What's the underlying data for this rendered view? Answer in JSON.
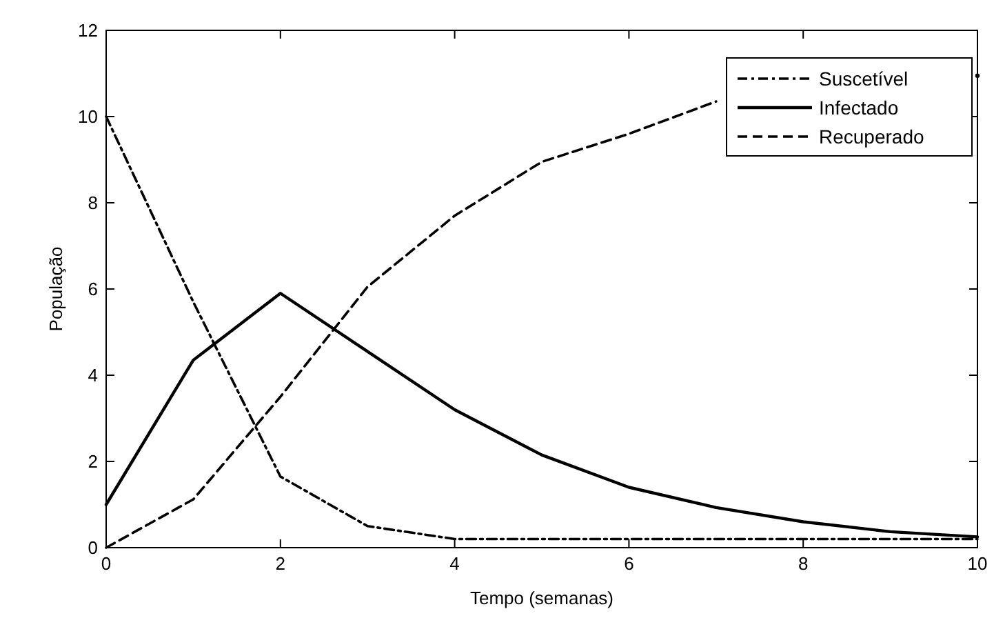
{
  "chart_data": {
    "type": "line",
    "xlabel": "Tempo (semanas)",
    "ylabel": "População",
    "x": [
      0,
      1,
      2,
      3,
      4,
      5,
      6,
      7,
      8,
      9,
      10
    ],
    "series": [
      {
        "name": "Suscetível",
        "color": "#000000",
        "line_style": "dashdot",
        "values": [
          10,
          5.7,
          1.65,
          0.5,
          0.2,
          0.2,
          0.2,
          0.2,
          0.2,
          0.2,
          0.2
        ]
      },
      {
        "name": "Infectado",
        "color": "#000000",
        "line_style": "solid",
        "values": [
          1,
          4.35,
          5.9,
          4.55,
          3.2,
          2.15,
          1.4,
          0.93,
          0.6,
          0.37,
          0.25
        ]
      },
      {
        "name": "Recuperado",
        "color": "#000000",
        "line_style": "dashed",
        "values": [
          0,
          1.12,
          3.5,
          6.05,
          7.7,
          8.95,
          9.6,
          10.35,
          null,
          null,
          10.95
        ]
      }
    ],
    "xlim": [
      0,
      10
    ],
    "xticks": [
      0,
      2,
      4,
      6,
      8,
      10
    ],
    "ylim": [
      0,
      12
    ],
    "yticks": [
      0,
      2,
      4,
      6,
      8,
      10,
      12
    ],
    "grid": false,
    "legend": "top right",
    "marker": "none"
  }
}
